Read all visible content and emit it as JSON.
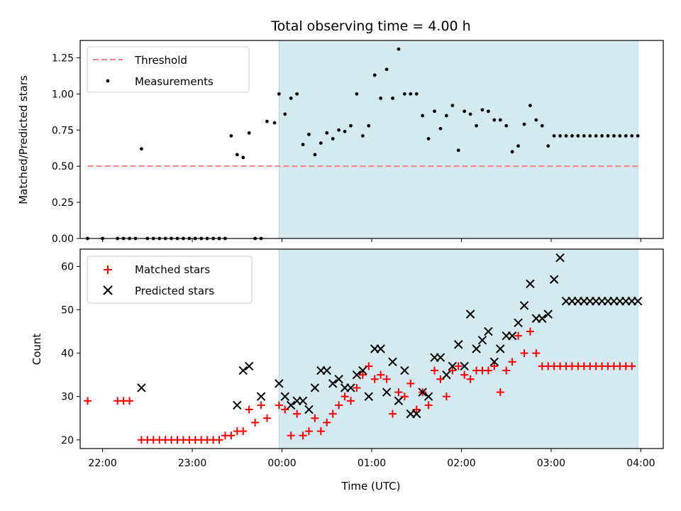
{
  "figure": {
    "title": "Total observing time = 4.00 h"
  },
  "chart_data": [
    {
      "type": "scatter",
      "title": "Total observing time = 4.00 h",
      "xlabel": "",
      "ylabel": "Matched/Predicted stars",
      "xlim": [
        "21:45",
        "04:15"
      ],
      "ylim": [
        0,
        1.37
      ],
      "xticks": [
        "22:00",
        "23:00",
        "00:00",
        "01:00",
        "02:00",
        "03:00",
        "04:00"
      ],
      "yticks": [
        "0.00",
        "0.25",
        "0.50",
        "0.75",
        "1.00",
        "1.25"
      ],
      "observing_window": {
        "start": "23:58",
        "end": "03:58",
        "color": "#d4e9f0"
      },
      "legend": {
        "placement": "upper left"
      },
      "series": [
        {
          "name": "Threshold",
          "kind": "line",
          "style": "dashed",
          "color": "#f08080",
          "x": [
            "21:50",
            "03:58"
          ],
          "y": [
            0.5,
            0.5
          ]
        },
        {
          "name": "Measurements",
          "kind": "scatter",
          "marker": "dot",
          "color": "#000000",
          "x": [
            "21:50",
            "22:00",
            "22:10",
            "22:14",
            "22:18",
            "22:22",
            "22:26",
            "22:30",
            "22:34",
            "22:38",
            "22:42",
            "22:46",
            "22:50",
            "22:54",
            "22:58",
            "23:02",
            "23:06",
            "23:10",
            "23:14",
            "23:18",
            "23:22",
            "23:26",
            "23:30",
            "23:34",
            "23:38",
            "23:42",
            "23:46",
            "23:50",
            "23:55",
            "23:58",
            "00:02",
            "00:06",
            "00:10",
            "00:14",
            "00:18",
            "00:22",
            "00:26",
            "00:30",
            "00:34",
            "00:38",
            "00:42",
            "00:46",
            "00:50",
            "00:54",
            "00:58",
            "01:02",
            "01:06",
            "01:10",
            "01:14",
            "01:18",
            "01:22",
            "01:26",
            "01:30",
            "01:34",
            "01:38",
            "01:42",
            "01:46",
            "01:50",
            "01:54",
            "01:58",
            "02:02",
            "02:06",
            "02:10",
            "02:14",
            "02:18",
            "02:22",
            "02:26",
            "02:30",
            "02:34",
            "02:38",
            "02:42",
            "02:46",
            "02:50",
            "02:54",
            "02:58",
            "03:02",
            "03:06",
            "03:10",
            "03:14",
            "03:18",
            "03:22",
            "03:26",
            "03:30",
            "03:34",
            "03:38",
            "03:42",
            "03:46",
            "03:50",
            "03:54",
            "03:58"
          ],
          "y": [
            0.0,
            0.0,
            0.0,
            0.0,
            0.0,
            0.0,
            0.62,
            0.0,
            0.0,
            0.0,
            0.0,
            0.0,
            0.0,
            0.0,
            0.0,
            0.0,
            0.0,
            0.0,
            0.0,
            0.0,
            0.0,
            0.71,
            0.58,
            0.56,
            0.73,
            0.0,
            0.0,
            0.81,
            0.8,
            1.0,
            0.86,
            0.97,
            1.0,
            0.65,
            0.72,
            0.58,
            0.66,
            0.73,
            0.69,
            0.75,
            0.74,
            0.78,
            1.0,
            0.71,
            0.78,
            1.13,
            0.97,
            1.17,
            0.97,
            1.31,
            1.0,
            1.0,
            1.0,
            0.85,
            0.69,
            0.88,
            0.76,
            0.85,
            0.92,
            0.61,
            0.88,
            0.86,
            0.78,
            0.89,
            0.88,
            0.82,
            0.82,
            0.78,
            0.6,
            0.64,
            0.79,
            0.92,
            0.82,
            0.78,
            0.64,
            0.71,
            0.71,
            0.71,
            0.71,
            0.71,
            0.71,
            0.71,
            0.71,
            0.71,
            0.71,
            0.71,
            0.71,
            0.71,
            0.71,
            0.71
          ]
        }
      ]
    },
    {
      "type": "scatter",
      "title": "",
      "xlabel": "Time (UTC)",
      "ylabel": "Count",
      "xlim": [
        "21:45",
        "04:15"
      ],
      "ylim": [
        18,
        64
      ],
      "xticks": [
        "22:00",
        "23:00",
        "00:00",
        "01:00",
        "02:00",
        "03:00",
        "04:00"
      ],
      "yticks": [
        "20",
        "30",
        "40",
        "50",
        "60"
      ],
      "observing_window": {
        "start": "23:58",
        "end": "03:58",
        "color": "#d4e9f0"
      },
      "legend": {
        "placement": "upper left"
      },
      "series": [
        {
          "name": "Matched stars",
          "kind": "scatter",
          "marker": "plus",
          "color": "#ff0000",
          "x": [
            "21:50",
            "22:10",
            "22:14",
            "22:18",
            "22:26",
            "22:30",
            "22:34",
            "22:38",
            "22:42",
            "22:46",
            "22:50",
            "22:54",
            "22:58",
            "23:02",
            "23:06",
            "23:10",
            "23:14",
            "23:18",
            "23:22",
            "23:26",
            "23:30",
            "23:34",
            "23:38",
            "23:42",
            "23:46",
            "23:50",
            "23:58",
            "00:02",
            "00:06",
            "00:10",
            "00:14",
            "00:18",
            "00:22",
            "00:26",
            "00:30",
            "00:34",
            "00:38",
            "00:42",
            "00:46",
            "00:50",
            "00:54",
            "00:58",
            "01:02",
            "01:06",
            "01:10",
            "01:14",
            "01:18",
            "01:22",
            "01:26",
            "01:30",
            "01:34",
            "01:38",
            "01:42",
            "01:46",
            "01:50",
            "01:54",
            "01:58",
            "02:02",
            "02:06",
            "02:10",
            "02:14",
            "02:18",
            "02:22",
            "02:26",
            "02:30",
            "02:34",
            "02:38",
            "02:42",
            "02:46",
            "02:50",
            "02:54",
            "02:58",
            "03:02",
            "03:06",
            "03:10",
            "03:14",
            "03:18",
            "03:22",
            "03:26",
            "03:30",
            "03:34",
            "03:38",
            "03:42",
            "03:46",
            "03:50",
            "03:54"
          ],
          "y": [
            29,
            29,
            29,
            29,
            20,
            20,
            20,
            20,
            20,
            20,
            20,
            20,
            20,
            20,
            20,
            20,
            20,
            20,
            21,
            21,
            22,
            22,
            27,
            24,
            28,
            25,
            28,
            27,
            21,
            26,
            21,
            22,
            25,
            22,
            24,
            26,
            28,
            30,
            29,
            32,
            35,
            37,
            34,
            35,
            34,
            26,
            31,
            30,
            33,
            27,
            31,
            28,
            36,
            34,
            30,
            36,
            37,
            35,
            34,
            36,
            36,
            36,
            37,
            31,
            36,
            38,
            44,
            40,
            45,
            40,
            37,
            37,
            37,
            37,
            37,
            37,
            37,
            37,
            37,
            37,
            37,
            37,
            37,
            37,
            37,
            37
          ]
        },
        {
          "name": "Predicted stars",
          "kind": "scatter",
          "marker": "x",
          "color": "#000000",
          "x": [
            "22:26",
            "23:30",
            "23:34",
            "23:38",
            "23:46",
            "23:58",
            "00:02",
            "00:06",
            "00:10",
            "00:14",
            "00:18",
            "00:22",
            "00:26",
            "00:30",
            "00:34",
            "00:38",
            "00:42",
            "00:46",
            "00:50",
            "00:54",
            "00:58",
            "01:02",
            "01:06",
            "01:10",
            "01:14",
            "01:18",
            "01:22",
            "01:26",
            "01:30",
            "01:34",
            "01:38",
            "01:42",
            "01:46",
            "01:50",
            "01:54",
            "01:58",
            "02:02",
            "02:06",
            "02:10",
            "02:14",
            "02:18",
            "02:22",
            "02:26",
            "02:30",
            "02:34",
            "02:38",
            "02:42",
            "02:46",
            "02:50",
            "02:54",
            "02:58",
            "03:02",
            "03:06",
            "03:10",
            "03:14",
            "03:18",
            "03:22",
            "03:26",
            "03:30",
            "03:34",
            "03:38",
            "03:42",
            "03:46",
            "03:50",
            "03:54",
            "03:58"
          ],
          "y": [
            32,
            28,
            36,
            37,
            30,
            33,
            30,
            28,
            29,
            29,
            27,
            32,
            36,
            36,
            33,
            34,
            32,
            32,
            35,
            36,
            30,
            41,
            41,
            31,
            38,
            29,
            36,
            26,
            26,
            31,
            30,
            39,
            39,
            35,
            37,
            42,
            37,
            49,
            41,
            43,
            45,
            38,
            41,
            44,
            44,
            47,
            51,
            56,
            48,
            48,
            49,
            57,
            62,
            52,
            52,
            52,
            52,
            52,
            52,
            52,
            52,
            52,
            52,
            52,
            52,
            52
          ]
        }
      ]
    }
  ]
}
